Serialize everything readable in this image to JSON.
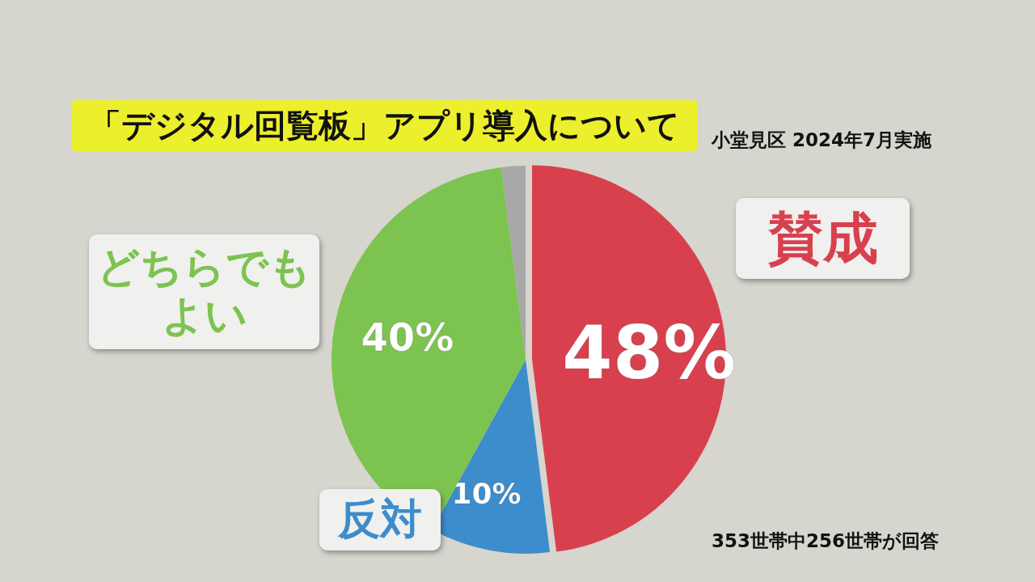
{
  "chart_data": {
    "type": "pie",
    "title": "「デジタル回覧板」アプリ導入について",
    "subtitle": "小堂見区 2024年7月実施",
    "annotations": [
      "353世帯中256世帯が回答"
    ],
    "categories": [
      "賛成",
      "反対",
      "どちらでもよい",
      null
    ],
    "values": [
      48,
      10,
      40,
      2
    ],
    "colors": [
      "#d9404e",
      "#3d8ccc",
      "#7cc350",
      "#a8a8a8"
    ],
    "value_labels": [
      "48%",
      "10%",
      "40%",
      null
    ]
  }
}
